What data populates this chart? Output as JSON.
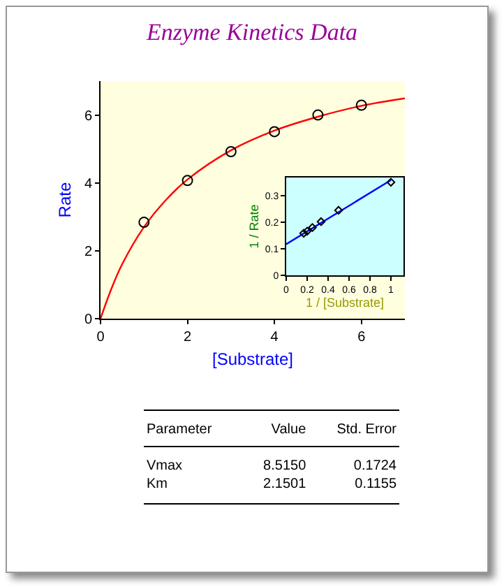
{
  "chart_data": [
    {
      "type": "scatter",
      "title": "Enzyme Kinetics Data",
      "xlabel": "[Substrate]",
      "ylabel": "Rate",
      "xlim": [
        0,
        7
      ],
      "ylim": [
        0,
        7
      ],
      "xticks": [
        0,
        2,
        4,
        6
      ],
      "yticks": [
        0,
        2,
        4,
        6
      ],
      "grid": false,
      "series": [
        {
          "type": "scatter",
          "marker": "circle",
          "color": "#000000",
          "x": [
            1,
            2,
            3,
            4,
            5,
            6
          ],
          "values": [
            2.84,
            4.07,
            4.92,
            5.51,
            6.0,
            6.29
          ]
        },
        {
          "type": "line",
          "marker": "none",
          "color": "#ff0000",
          "x": [
            0,
            0.25,
            0.5,
            1,
            1.5,
            2,
            3,
            4,
            5,
            6,
            7
          ],
          "values": [
            0,
            0.88,
            1.61,
            2.7,
            3.49,
            4.1,
            4.96,
            5.54,
            5.95,
            6.27,
            6.49
          ]
        }
      ]
    },
    {
      "type": "scatter",
      "xlabel": "1 / [Substrate]",
      "ylabel": "1 / Rate",
      "xlim": [
        0,
        1.12
      ],
      "ylim": [
        0,
        0.37
      ],
      "xticks": [
        0,
        0.2,
        0.4,
        0.6,
        0.8,
        1
      ],
      "yticks": [
        0,
        0.1,
        0.2,
        0.3
      ],
      "grid": false,
      "series": [
        {
          "type": "scatter",
          "marker": "diamond",
          "color": "#000000",
          "x": [
            1,
            0.5,
            0.333,
            0.25,
            0.2,
            0.167
          ],
          "values": [
            0.352,
            0.246,
            0.203,
            0.181,
            0.167,
            0.159
          ]
        },
        {
          "type": "line",
          "marker": "none",
          "color": "#0000ff",
          "x": [
            0,
            1
          ],
          "values": [
            0.118,
            0.36
          ]
        }
      ]
    },
    {
      "type": "other",
      "ylabel": "Parameter",
      "categories": [
        "Value",
        "Std. Error"
      ],
      "y_categories": [
        "Vmax",
        "Km"
      ],
      "cells": [
        [
          "8.5150",
          "0.1724"
        ],
        [
          "2.1501",
          "0.1155"
        ]
      ]
    }
  ]
}
